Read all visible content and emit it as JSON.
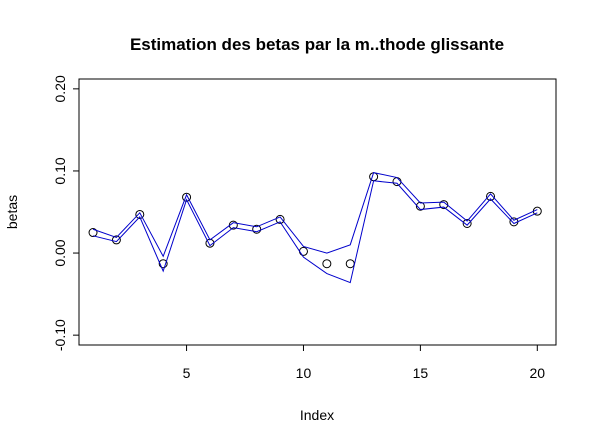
{
  "chart_data": {
    "type": "scatter",
    "title": "Estimation des betas par la m..thode glissante",
    "xlabel": "Index",
    "ylabel": "betas",
    "xlim": [
      0.4,
      20.8
    ],
    "ylim": [
      -0.112,
      0.212
    ],
    "xticks": [
      5,
      10,
      15,
      20
    ],
    "xtick_labels": [
      "5",
      "10",
      "15",
      "20"
    ],
    "yticks": [
      -0.1,
      0.0,
      0.1,
      0.2
    ],
    "ytick_labels": [
      "-0.10",
      "0.00",
      "0.10",
      "0.20"
    ],
    "grid": false,
    "legend": "none",
    "series": [
      {
        "marker": "open-circle",
        "color": "#000000",
        "x": [
          1,
          2,
          3,
          4,
          5,
          6,
          7,
          8,
          9,
          10,
          11,
          12,
          13,
          14,
          15,
          16,
          17,
          18,
          19,
          20
        ],
        "y": [
          0.025,
          0.016,
          0.047,
          -0.013,
          0.068,
          0.012,
          0.034,
          0.029,
          0.041,
          0.002,
          -0.013,
          -0.013,
          0.093,
          0.087,
          0.057,
          0.059,
          0.036,
          0.069,
          0.038,
          0.051
        ]
      },
      {
        "marker": "line",
        "color": "#0000cc",
        "x": [
          1,
          2,
          3,
          4,
          5,
          6,
          7,
          8,
          9,
          10,
          11,
          12,
          13,
          14,
          15,
          16,
          17,
          18,
          19,
          20
        ],
        "y": [
          0.029,
          0.019,
          0.049,
          -0.004,
          0.071,
          0.016,
          0.037,
          0.032,
          0.044,
          0.008,
          0.0,
          0.01,
          0.098,
          0.092,
          0.061,
          0.062,
          0.039,
          0.072,
          0.04,
          0.053
        ]
      },
      {
        "marker": "line",
        "color": "#0000cc",
        "x": [
          1,
          2,
          3,
          4,
          5,
          6,
          7,
          8,
          9,
          10,
          11,
          12,
          13,
          14,
          15,
          16,
          17,
          18,
          19,
          20
        ],
        "y": [
          0.021,
          0.014,
          0.044,
          -0.022,
          0.065,
          0.009,
          0.031,
          0.026,
          0.038,
          -0.005,
          -0.025,
          -0.036,
          0.088,
          0.085,
          0.053,
          0.056,
          0.034,
          0.066,
          0.036,
          0.049
        ]
      }
    ]
  }
}
